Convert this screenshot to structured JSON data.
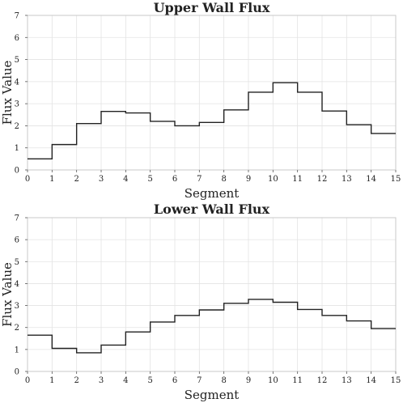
{
  "chart_data": [
    {
      "type": "line",
      "step": "post",
      "title": "Upper Wall Flux",
      "xlabel": "Segment",
      "ylabel": "Flux Value",
      "xlim": [
        0,
        15
      ],
      "ylim": [
        0,
        7
      ],
      "xticks": [
        0,
        1,
        2,
        3,
        4,
        5,
        6,
        7,
        8,
        9,
        10,
        11,
        12,
        13,
        14,
        15
      ],
      "yticks": [
        0,
        1,
        2,
        3,
        4,
        5,
        6,
        7
      ],
      "grid": true,
      "series": [
        {
          "values": [
            0.5,
            1.15,
            2.1,
            2.65,
            2.58,
            2.2,
            2.0,
            2.15,
            2.72,
            3.52,
            3.95,
            3.52,
            2.67,
            2.05,
            1.65,
            1.65
          ]
        }
      ]
    },
    {
      "type": "line",
      "step": "post",
      "title": "Lower Wall Flux",
      "xlabel": "Segment",
      "ylabel": "Flux Value",
      "xlim": [
        0,
        15
      ],
      "ylim": [
        0,
        7
      ],
      "xticks": [
        0,
        1,
        2,
        3,
        4,
        5,
        6,
        7,
        8,
        9,
        10,
        11,
        12,
        13,
        14,
        15
      ],
      "yticks": [
        0,
        1,
        2,
        3,
        4,
        5,
        6,
        7
      ],
      "grid": true,
      "series": [
        {
          "values": [
            1.65,
            1.05,
            0.85,
            1.2,
            1.8,
            2.25,
            2.55,
            2.8,
            3.1,
            3.28,
            3.15,
            2.82,
            2.55,
            2.3,
            1.95,
            1.95
          ]
        }
      ]
    }
  ]
}
